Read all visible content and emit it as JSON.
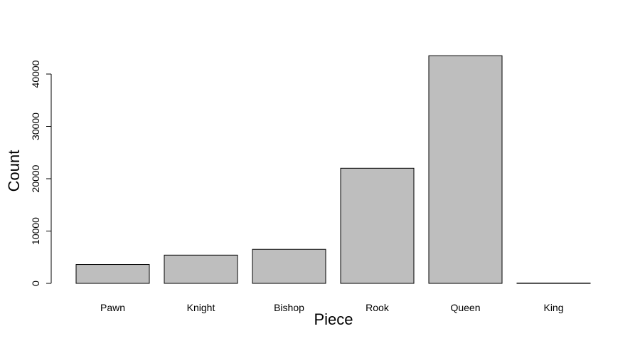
{
  "chart_data": {
    "type": "bar",
    "title": "",
    "xlabel": "Piece",
    "ylabel": "Count",
    "categories": [
      "Pawn",
      "Knight",
      "Bishop",
      "Rook",
      "Queen",
      "King"
    ],
    "values": [
      3600,
      5400,
      6500,
      22000,
      43500,
      40
    ],
    "ylim": [
      0,
      45000
    ],
    "yticks": [
      0,
      10000,
      20000,
      30000,
      40000
    ],
    "grid": false,
    "bar_color": "#bebebe",
    "bar_border_color": "#000000"
  }
}
